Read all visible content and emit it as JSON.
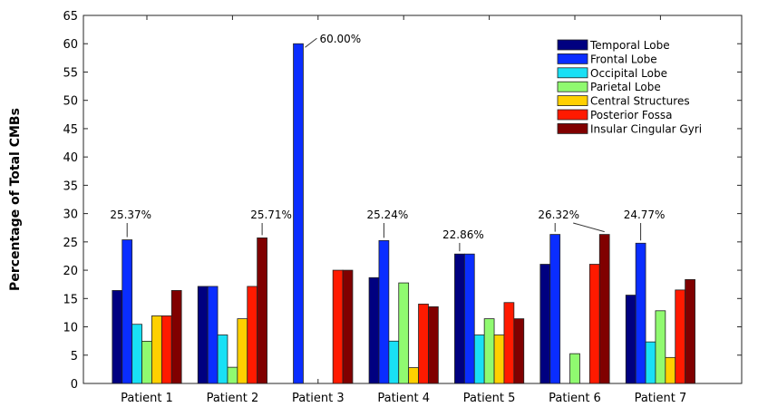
{
  "chart_data": {
    "type": "bar",
    "title": "",
    "xlabel": "",
    "ylabel": "Percentage of Total CMBs",
    "ylim": [
      0,
      65
    ],
    "yticks": [
      0,
      5,
      10,
      15,
      20,
      25,
      30,
      35,
      40,
      45,
      50,
      55,
      60,
      65
    ],
    "grid": false,
    "legend_position": "top-right",
    "categories": [
      "Patient 1",
      "Patient 2",
      "Patient 3",
      "Patient 4",
      "Patient 5",
      "Patient 6",
      "Patient 7"
    ],
    "series": [
      {
        "name": "Temporal Lobe",
        "color": "#000080",
        "values": [
          16.42,
          17.14,
          0,
          18.69,
          22.86,
          21.05,
          15.6
        ]
      },
      {
        "name": "Frontal Lobe",
        "color": "#0a2dff",
        "values": [
          25.37,
          17.14,
          60.0,
          25.24,
          22.86,
          26.32,
          24.77
        ]
      },
      {
        "name": "Occipital Lobe",
        "color": "#19e0f5",
        "values": [
          10.45,
          8.57,
          0,
          7.48,
          8.57,
          0,
          7.34
        ]
      },
      {
        "name": "Parietal Lobe",
        "color": "#90fa70",
        "values": [
          7.46,
          2.86,
          0,
          17.76,
          11.43,
          5.26,
          12.84
        ]
      },
      {
        "name": "Central Structures",
        "color": "#ffd000",
        "values": [
          11.94,
          11.43,
          0,
          2.8,
          8.57,
          0,
          4.59
        ]
      },
      {
        "name": "Posterior Fossa",
        "color": "#ff1a00",
        "values": [
          11.94,
          17.14,
          20.0,
          14.02,
          14.29,
          21.05,
          16.51
        ]
      },
      {
        "name": "Insular Cingular Gyri",
        "color": "#800000",
        "values": [
          16.42,
          25.71,
          20.0,
          13.55,
          11.43,
          26.32,
          18.35
        ]
      }
    ],
    "annotations": [
      {
        "text": "25.37%",
        "category": 0,
        "series": [
          1
        ]
      },
      {
        "text": "25.71%",
        "category": 1,
        "series": [
          6
        ]
      },
      {
        "text": "60.00%",
        "category": 2,
        "series": [
          1
        ]
      },
      {
        "text": "25.24%",
        "category": 3,
        "series": [
          1
        ]
      },
      {
        "text": "22.86%",
        "category": 4,
        "series": [
          0
        ]
      },
      {
        "text": "26.32%",
        "category": 5,
        "series": [
          1,
          6
        ]
      },
      {
        "text": "24.77%",
        "category": 6,
        "series": [
          1
        ]
      }
    ]
  }
}
